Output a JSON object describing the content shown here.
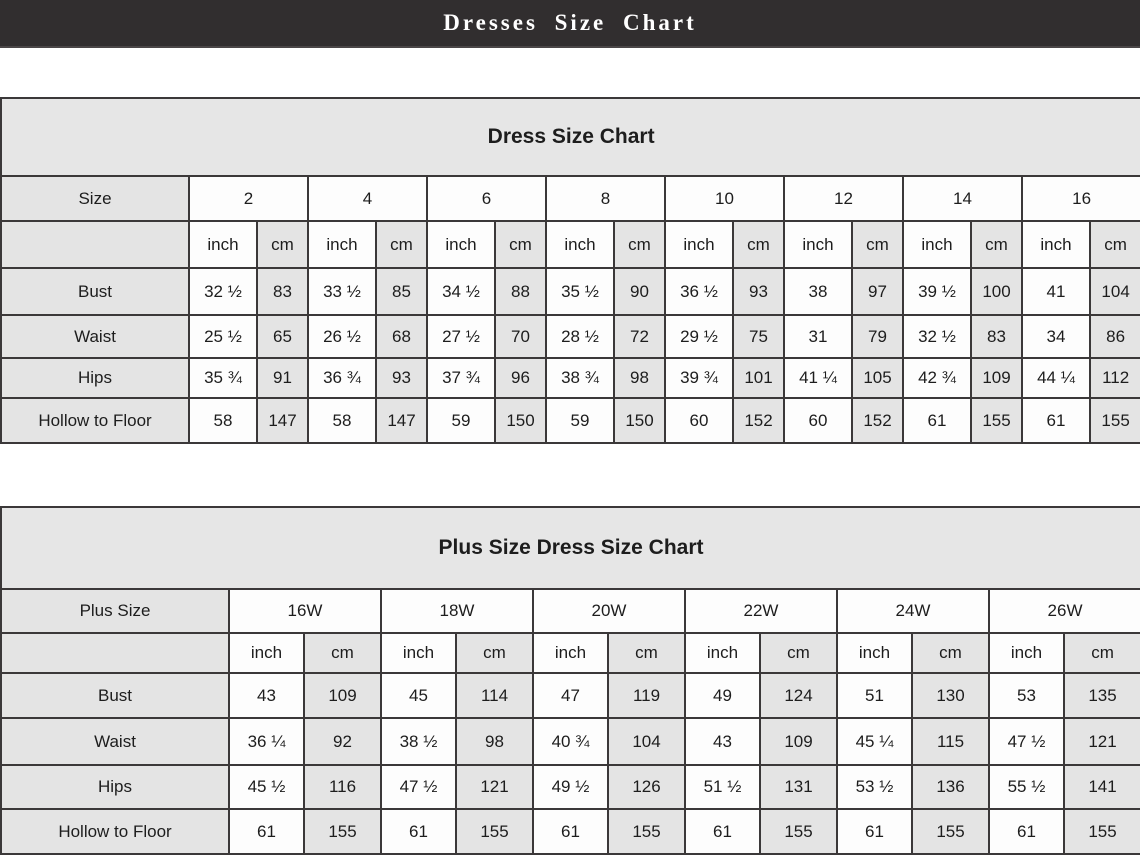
{
  "page": {
    "banner_title": "Dresses Size Chart"
  },
  "colors": {
    "banner_bg": "#312e2f",
    "banner_text": "#ffffff",
    "cell_gray": "#e4e4e4",
    "cell_white": "#fdfdfd",
    "border": "#3b3839",
    "text": "#1d1d1d"
  },
  "tables": [
    {
      "title": "Dress Size Chart",
      "size_label": "Size",
      "sizes": [
        "2",
        "4",
        "6",
        "8",
        "10",
        "12",
        "14",
        "16"
      ],
      "unit_labels": [
        "inch",
        "cm"
      ],
      "rows": [
        {
          "label": "Bust",
          "values": [
            "32 ½",
            "83",
            "33 ½",
            "85",
            "34 ½",
            "88",
            "35 ½",
            "90",
            "36 ½",
            "93",
            "38",
            "97",
            "39 ½",
            "100",
            "41",
            "104"
          ]
        },
        {
          "label": "Waist",
          "values": [
            "25 ½",
            "65",
            "26 ½",
            "68",
            "27 ½",
            "70",
            "28 ½",
            "72",
            "29 ½",
            "75",
            "31",
            "79",
            "32 ½",
            "83",
            "34",
            "86"
          ]
        },
        {
          "label": "Hips",
          "values": [
            "35 ¾",
            "91",
            "36 ¾",
            "93",
            "37 ¾",
            "96",
            "38 ¾",
            "98",
            "39 ¾",
            "101",
            "41 ¼",
            "105",
            "42 ¾",
            "109",
            "44 ¼",
            "112"
          ]
        },
        {
          "label": "Hollow to Floor",
          "values": [
            "58",
            "147",
            "58",
            "147",
            "59",
            "150",
            "59",
            "150",
            "60",
            "152",
            "60",
            "152",
            "61",
            "155",
            "61",
            "155"
          ]
        }
      ]
    },
    {
      "title": "Plus Size Dress Size Chart",
      "size_label": "Plus Size",
      "sizes": [
        "16W",
        "18W",
        "20W",
        "22W",
        "24W",
        "26W"
      ],
      "unit_labels": [
        "inch",
        "cm"
      ],
      "rows": [
        {
          "label": "Bust",
          "values": [
            "43",
            "109",
            "45",
            "114",
            "47",
            "119",
            "49",
            "124",
            "51",
            "130",
            "53",
            "135"
          ]
        },
        {
          "label": "Waist",
          "values": [
            "36 ¼",
            "92",
            "38 ½",
            "98",
            "40 ¾",
            "104",
            "43",
            "109",
            "45 ¼",
            "115",
            "47 ½",
            "121"
          ]
        },
        {
          "label": "Hips",
          "values": [
            "45 ½",
            "116",
            "47 ½",
            "121",
            "49 ½",
            "126",
            "51 ½",
            "131",
            "53 ½",
            "136",
            "55 ½",
            "141"
          ]
        },
        {
          "label": "Hollow to Floor",
          "values": [
            "61",
            "155",
            "61",
            "155",
            "61",
            "155",
            "61",
            "155",
            "61",
            "155",
            "61",
            "155"
          ]
        }
      ]
    }
  ]
}
